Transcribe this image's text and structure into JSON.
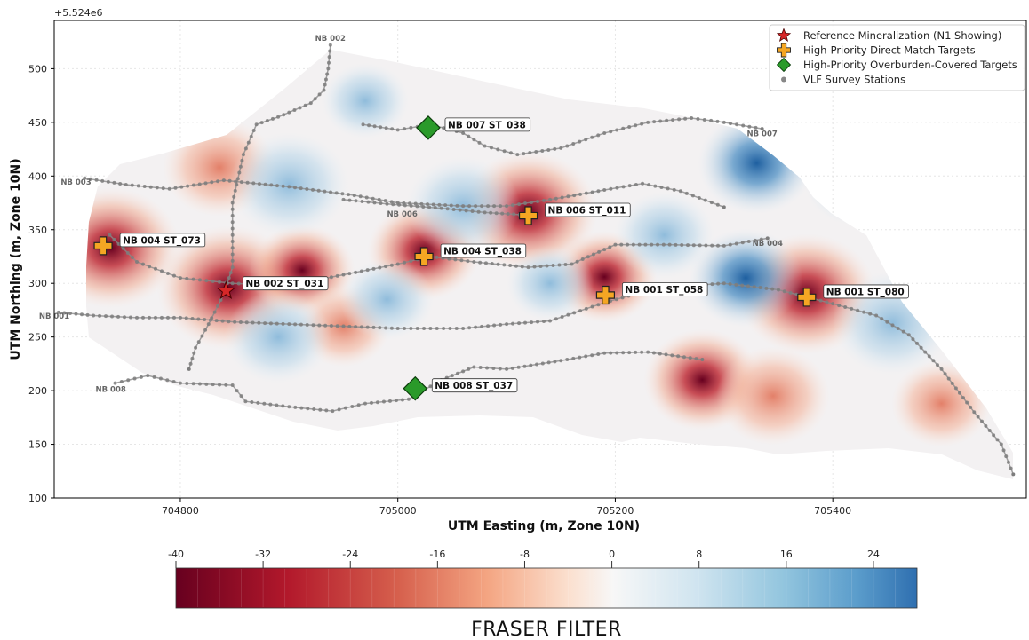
{
  "chart_data": {
    "type": "scatter",
    "title": "",
    "xlabel": "UTM Easting (m, Zone 10N)",
    "ylabel": "UTM Northing (m, Zone 10N)",
    "y_offset_label": "+5.524e6",
    "xlim": [
      704684,
      705578
    ],
    "ylim": [
      100,
      545
    ],
    "x_ticks": [
      704800,
      705000,
      705200,
      705400
    ],
    "y_ticks": [
      100,
      150,
      200,
      250,
      300,
      350,
      400,
      450,
      500
    ],
    "grid": true,
    "legend_placement": "top-right",
    "legend": [
      {
        "label": "Reference Mineralization (N1 Showing)",
        "marker": "star",
        "color": "#d62728"
      },
      {
        "label": "High-Priority Direct Match Targets",
        "marker": "plus",
        "color": "#f5a623"
      },
      {
        "label": "High-Priority Overburden-Covered Targets",
        "marker": "diamond",
        "color": "#2a9a2a"
      },
      {
        "label": "VLF Survey Stations",
        "marker": "dot",
        "color": "#888888"
      }
    ],
    "reference": [
      {
        "label": "NB 002 ST_031",
        "x": 704842,
        "y": 293
      }
    ],
    "direct_targets": [
      {
        "label": "NB 004 ST_073",
        "x": 704729,
        "y": 335
      },
      {
        "label": "NB 004 ST_038",
        "x": 705024,
        "y": 325
      },
      {
        "label": "NB 006 ST_011",
        "x": 705120,
        "y": 363
      },
      {
        "label": "NB 001 ST_058",
        "x": 705191,
        "y": 289
      },
      {
        "label": "NB 001 ST_080",
        "x": 705376,
        "y": 287
      }
    ],
    "covered_targets": [
      {
        "label": "NB 007 ST_038",
        "x": 705028,
        "y": 445
      },
      {
        "label": "NB 008 ST_037",
        "x": 705016,
        "y": 202
      }
    ],
    "survey_lines": [
      {
        "name": "NB 001",
        "points": [
          [
            704688,
            273
          ],
          [
            704720,
            270
          ],
          [
            704760,
            268
          ],
          [
            704800,
            268
          ],
          [
            704850,
            264
          ],
          [
            704900,
            262
          ],
          [
            704950,
            260
          ],
          [
            705000,
            258
          ],
          [
            705060,
            258
          ],
          [
            705100,
            262
          ],
          [
            705140,
            265
          ],
          [
            705190,
            282
          ],
          [
            705240,
            296
          ],
          [
            705300,
            300
          ],
          [
            705350,
            294
          ],
          [
            705400,
            281
          ],
          [
            705440,
            270
          ],
          [
            705470,
            252
          ],
          [
            705500,
            220
          ],
          [
            705530,
            180
          ],
          [
            705555,
            150
          ],
          [
            705566,
            122
          ]
        ]
      },
      {
        "name": "NB 002",
        "points": [
          [
            704938,
            522
          ],
          [
            704936,
            500
          ],
          [
            704932,
            480
          ],
          [
            704920,
            468
          ],
          [
            704890,
            455
          ],
          [
            704870,
            448
          ],
          [
            704858,
            420
          ],
          [
            704848,
            375
          ],
          [
            704848,
            345
          ],
          [
            704848,
            315
          ],
          [
            704840,
            290
          ],
          [
            704826,
            262
          ],
          [
            704814,
            240
          ],
          [
            704808,
            220
          ]
        ]
      },
      {
        "name": "NB 003",
        "points": [
          [
            704712,
            398
          ],
          [
            704750,
            392
          ],
          [
            704790,
            388
          ],
          [
            704840,
            396
          ],
          [
            704900,
            390
          ],
          [
            704960,
            382
          ],
          [
            705000,
            375
          ],
          [
            705060,
            372
          ],
          [
            705100,
            372
          ],
          [
            705140,
            378
          ],
          [
            705190,
            387
          ],
          [
            705225,
            393
          ],
          [
            705260,
            386
          ],
          [
            705300,
            371
          ]
        ]
      },
      {
        "name": "NB 004",
        "points": [
          [
            704735,
            345
          ],
          [
            704760,
            320
          ],
          [
            704800,
            305
          ],
          [
            704848,
            300
          ],
          [
            704900,
            298
          ],
          [
            704950,
            308
          ],
          [
            705000,
            318
          ],
          [
            705030,
            325
          ],
          [
            705070,
            320
          ],
          [
            705120,
            315
          ],
          [
            705160,
            318
          ],
          [
            705200,
            336
          ],
          [
            705250,
            336
          ],
          [
            705300,
            335
          ],
          [
            705340,
            342
          ]
        ]
      },
      {
        "name": "NB 006",
        "points": [
          [
            704950,
            378
          ],
          [
            704990,
            374
          ],
          [
            705040,
            370
          ],
          [
            705080,
            366
          ],
          [
            705112,
            364
          ]
        ]
      },
      {
        "name": "NB 007",
        "points": [
          [
            704968,
            448
          ],
          [
            705000,
            443
          ],
          [
            705030,
            448
          ],
          [
            705060,
            440
          ],
          [
            705080,
            428
          ],
          [
            705110,
            420
          ],
          [
            705150,
            426
          ],
          [
            705190,
            440
          ],
          [
            705230,
            450
          ],
          [
            705270,
            454
          ],
          [
            705300,
            450
          ],
          [
            705335,
            444
          ]
        ]
      },
      {
        "name": "NB 008",
        "points": [
          [
            704740,
            207
          ],
          [
            704770,
            214
          ],
          [
            704800,
            207
          ],
          [
            704848,
            205
          ],
          [
            704860,
            190
          ],
          [
            704900,
            185
          ],
          [
            704940,
            181
          ],
          [
            704970,
            188
          ],
          [
            705010,
            192
          ],
          [
            705040,
            210
          ],
          [
            705070,
            222
          ],
          [
            705100,
            220
          ],
          [
            705150,
            228
          ],
          [
            705190,
            235
          ],
          [
            705230,
            236
          ],
          [
            705280,
            229
          ]
        ]
      }
    ],
    "colorbar": {
      "label": "FRASER FILTER",
      "min": -40,
      "max": 28,
      "ticks": [
        -40,
        -32,
        -24,
        -16,
        -8,
        0,
        8,
        16,
        24
      ],
      "colormap": "RdBu"
    },
    "anomalies": [
      {
        "x": 704736,
        "y": 333,
        "value": -38
      },
      {
        "x": 704844,
        "y": 296,
        "value": -40
      },
      {
        "x": 705120,
        "y": 367,
        "value": -38
      },
      {
        "x": 705376,
        "y": 290,
        "value": -38
      },
      {
        "x": 705024,
        "y": 330,
        "value": -24
      },
      {
        "x": 705190,
        "y": 306,
        "value": -20
      },
      {
        "x": 705280,
        "y": 210,
        "value": -26
      },
      {
        "x": 705345,
        "y": 195,
        "value": -16
      },
      {
        "x": 704912,
        "y": 312,
        "value": -20
      },
      {
        "x": 704836,
        "y": 408,
        "value": -16
      },
      {
        "x": 705500,
        "y": 188,
        "value": -12
      },
      {
        "x": 704950,
        "y": 260,
        "value": -10
      },
      {
        "x": 705330,
        "y": 412,
        "value": 26
      },
      {
        "x": 705320,
        "y": 305,
        "value": 24
      },
      {
        "x": 704900,
        "y": 392,
        "value": 18
      },
      {
        "x": 705455,
        "y": 263,
        "value": 18
      },
      {
        "x": 704890,
        "y": 250,
        "value": 14
      },
      {
        "x": 705060,
        "y": 372,
        "value": 16
      },
      {
        "x": 705245,
        "y": 345,
        "value": 12
      },
      {
        "x": 704990,
        "y": 285,
        "value": 10
      },
      {
        "x": 704970,
        "y": 470,
        "value": 8
      },
      {
        "x": 705140,
        "y": 300,
        "value": 8
      },
      {
        "x": 705420,
        "y": 395,
        "value": 12
      }
    ]
  }
}
